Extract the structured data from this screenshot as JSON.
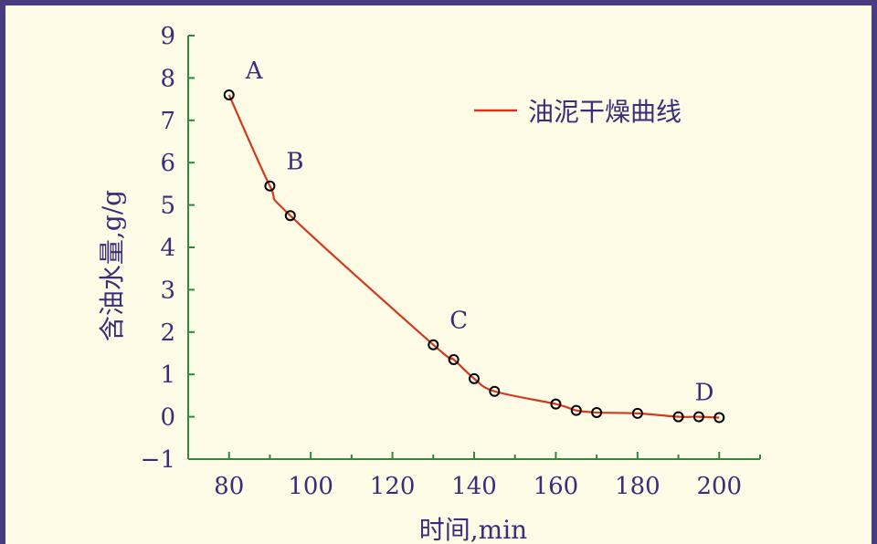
{
  "chart_data": {
    "type": "line",
    "xlabel": "时间,min",
    "ylabel": "含油水量,g/g",
    "xlim": [
      70,
      210
    ],
    "ylim": [
      -1,
      9
    ],
    "xticks": [
      80,
      100,
      120,
      140,
      160,
      180,
      200
    ],
    "yticks": [
      -1,
      0,
      1,
      2,
      3,
      4,
      5,
      6,
      7,
      8,
      9
    ],
    "grid": false,
    "legend_position": "top-right",
    "series": [
      {
        "name": "油泥干燥曲线",
        "color": "#d23a1e",
        "x": [
          80,
          90,
          95,
          130,
          135,
          140,
          145,
          160,
          165,
          170,
          180,
          190,
          195,
          200
        ],
        "y": [
          7.6,
          5.45,
          4.75,
          1.7,
          1.35,
          0.9,
          0.6,
          0.3,
          0.15,
          0.1,
          0.08,
          0.0,
          0.0,
          -0.02
        ]
      }
    ],
    "point_labels": [
      {
        "text": "A",
        "x": 80,
        "y": 7.6
      },
      {
        "text": "B",
        "x": 90,
        "y": 5.45
      },
      {
        "text": "C",
        "x": 130,
        "y": 1.7
      },
      {
        "text": "D",
        "x": 190,
        "y": 0.0
      }
    ]
  },
  "colors": {
    "background": "#fefbe6",
    "border": "#4a3c82",
    "axis": "#2d8a3c",
    "text": "#3a2d7a",
    "curve": "#d23a1e",
    "marker": "#000000"
  }
}
